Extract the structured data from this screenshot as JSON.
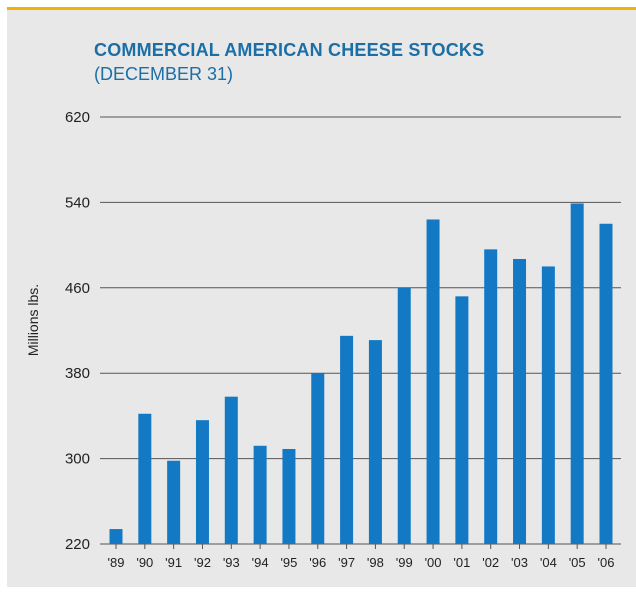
{
  "colors": {
    "accent_bar": "#f0b400",
    "panel_bg": "#e8e8e8",
    "title": "#1b6ea6",
    "bars": "#1479c4",
    "grid": "#555555"
  },
  "chart_data": {
    "type": "bar",
    "title": "COMMERCIAL AMERICAN CHEESE STOCKS",
    "subtitle": "(DECEMBER 31)",
    "xlabel": "",
    "ylabel": "Millions lbs.",
    "ylim": [
      220,
      620
    ],
    "yticks": [
      220,
      300,
      380,
      460,
      540,
      620
    ],
    "grid": true,
    "categories": [
      "'89",
      "'90",
      "'91",
      "'92",
      "'93",
      "'94",
      "'95",
      "'96",
      "'97",
      "'98",
      "'99",
      "'00",
      "'01",
      "'02",
      "'03",
      "'04",
      "'05",
      "'06"
    ],
    "values": [
      234,
      342,
      298,
      336,
      358,
      312,
      309,
      380,
      415,
      411,
      460,
      524,
      452,
      496,
      487,
      480,
      539,
      520
    ]
  }
}
